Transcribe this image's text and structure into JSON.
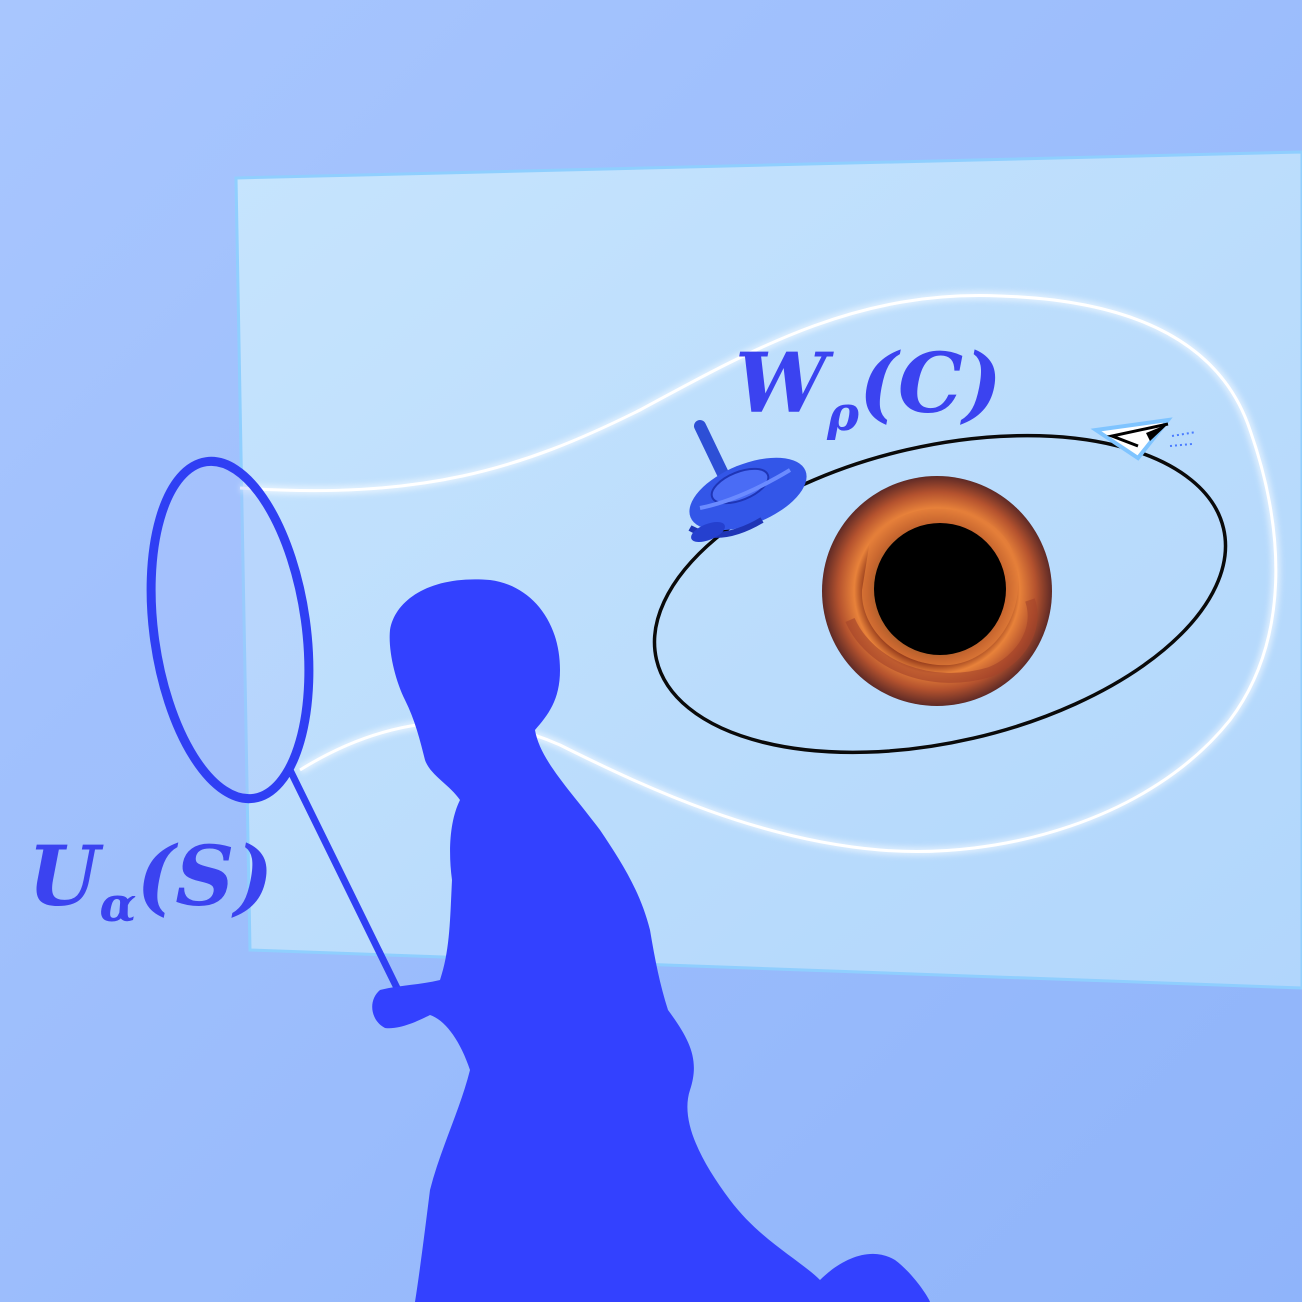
{
  "labels": {
    "wilson_loop": {
      "symbol": "W",
      "subscript": "ρ",
      "argument": "(C)"
    },
    "symmetry_operator": {
      "symbol": "U",
      "subscript": "α",
      "argument": "(S)"
    }
  },
  "colors": {
    "background_top": "#a9c6fd",
    "background_bottom": "#93b6fb",
    "panel": "#c4e2fd",
    "panel_edge": "#8fd0ff",
    "silhouette": "#3341ff",
    "label": "#3b43f0",
    "net_ring": "#2f3ff4",
    "orbit": "#0a0a0a",
    "tube": "#f4f9ff",
    "black_hole_core": "#000000",
    "black_hole_glow": "#e8823a",
    "black_hole_outer": "#6e2a20"
  },
  "icons": {
    "spinning_top": "spinning-top-icon",
    "black_hole": "black-hole-icon",
    "paper_plane": "paper-plane-icon",
    "butterfly_net": "butterfly-net-icon",
    "child_silhouette": "child-silhouette"
  }
}
